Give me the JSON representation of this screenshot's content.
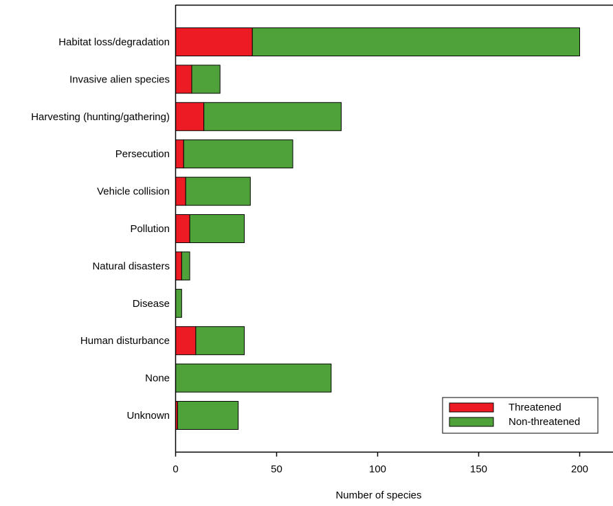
{
  "chart_data": {
    "type": "bar",
    "orientation": "horizontal",
    "stacked": true,
    "categories": [
      "Habitat loss/degradation",
      "Invasive alien species",
      "Harvesting (hunting/gathering)",
      "Persecution",
      "Vehicle collision",
      "Pollution",
      "Natural disasters",
      "Disease",
      "Human disturbance",
      "None",
      "Unknown"
    ],
    "series": [
      {
        "name": "Threatened",
        "color": "#ed1c24",
        "values": [
          38,
          8,
          14,
          4,
          5,
          7,
          3,
          0,
          10,
          0,
          1
        ]
      },
      {
        "name": "Non-threatened",
        "color": "#4fa23a",
        "values": [
          162,
          14,
          68,
          54,
          32,
          27,
          4,
          3,
          24,
          77,
          30
        ]
      }
    ],
    "xlabel": "Number of species",
    "ylabel": "",
    "xlim": [
      0,
      215
    ],
    "xticks": [
      0,
      50,
      100,
      150,
      200
    ],
    "legend_position": "bottom-right",
    "grid": false
  }
}
